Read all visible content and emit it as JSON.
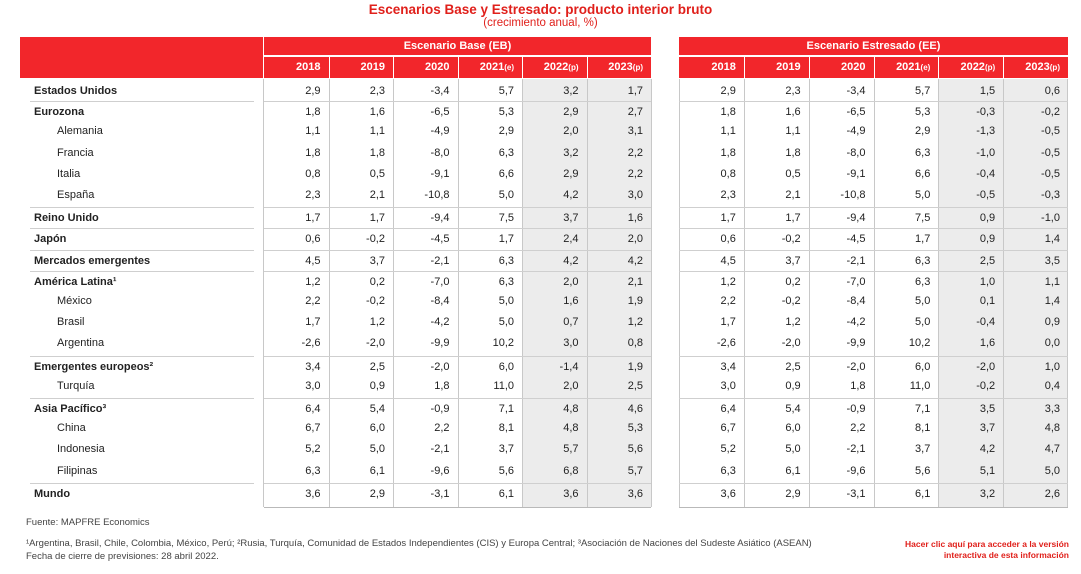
{
  "title": "Escenarios Base y Estresado: producto interior bruto",
  "subtitle": "(crecimiento anual, %)",
  "groups": {
    "base": "Escenario Base (EB)",
    "stress": "Escenario Estresado (EE)"
  },
  "years": [
    {
      "y": "2018",
      "s": ""
    },
    {
      "y": "2019",
      "s": ""
    },
    {
      "y": "2020",
      "s": ""
    },
    {
      "y": "2021",
      "s": "(e)"
    },
    {
      "y": "2022",
      "s": "(p)"
    },
    {
      "y": "2023",
      "s": "(p)"
    }
  ],
  "rows": [
    {
      "label": "Estados Unidos",
      "bold": true,
      "indent": false,
      "eb": [
        "2,9",
        "2,3",
        "-3,4",
        "5,7",
        "3,2",
        "1,7"
      ],
      "ee": [
        "2,9",
        "2,3",
        "-3,4",
        "5,7",
        "1,5",
        "0,6"
      ]
    },
    {
      "label": "Eurozona",
      "bold": true,
      "indent": false,
      "eb": [
        "1,8",
        "1,6",
        "-6,5",
        "5,3",
        "2,9",
        "2,7"
      ],
      "ee": [
        "1,8",
        "1,6",
        "-6,5",
        "5,3",
        "-0,3",
        "-0,2"
      ]
    },
    {
      "label": "Alemania",
      "bold": false,
      "indent": true,
      "eb": [
        "1,1",
        "1,1",
        "-4,9",
        "2,9",
        "2,0",
        "3,1"
      ],
      "ee": [
        "1,1",
        "1,1",
        "-4,9",
        "2,9",
        "-1,3",
        "-0,5"
      ]
    },
    {
      "label": "Francia",
      "bold": false,
      "indent": true,
      "eb": [
        "1,8",
        "1,8",
        "-8,0",
        "6,3",
        "3,2",
        "2,2"
      ],
      "ee": [
        "1,8",
        "1,8",
        "-8,0",
        "6,3",
        "-1,0",
        "-0,5"
      ]
    },
    {
      "label": "Italia",
      "bold": false,
      "indent": true,
      "eb": [
        "0,8",
        "0,5",
        "-9,1",
        "6,6",
        "2,9",
        "2,2"
      ],
      "ee": [
        "0,8",
        "0,5",
        "-9,1",
        "6,6",
        "-0,4",
        "-0,5"
      ]
    },
    {
      "label": "España",
      "bold": false,
      "indent": true,
      "eb": [
        "2,3",
        "2,1",
        "-10,8",
        "5,0",
        "4,2",
        "3,0"
      ],
      "ee": [
        "2,3",
        "2,1",
        "-10,8",
        "5,0",
        "-0,5",
        "-0,3"
      ]
    },
    {
      "label": "Reino Unido",
      "bold": true,
      "indent": false,
      "eb": [
        "1,7",
        "1,7",
        "-9,4",
        "7,5",
        "3,7",
        "1,6"
      ],
      "ee": [
        "1,7",
        "1,7",
        "-9,4",
        "7,5",
        "0,9",
        "-1,0"
      ]
    },
    {
      "label": "Japón",
      "bold": true,
      "indent": false,
      "eb": [
        "0,6",
        "-0,2",
        "-4,5",
        "1,7",
        "2,4",
        "2,0"
      ],
      "ee": [
        "0,6",
        "-0,2",
        "-4,5",
        "1,7",
        "0,9",
        "1,4"
      ]
    },
    {
      "label": "Mercados emergentes",
      "bold": true,
      "indent": false,
      "eb": [
        "4,5",
        "3,7",
        "-2,1",
        "6,3",
        "4,2",
        "4,2"
      ],
      "ee": [
        "4,5",
        "3,7",
        "-2,1",
        "6,3",
        "2,5",
        "3,5"
      ]
    },
    {
      "label": "América Latina¹",
      "bold": true,
      "indent": false,
      "eb": [
        "1,2",
        "0,2",
        "-7,0",
        "6,3",
        "2,0",
        "2,1"
      ],
      "ee": [
        "1,2",
        "0,2",
        "-7,0",
        "6,3",
        "1,0",
        "1,1"
      ]
    },
    {
      "label": "México",
      "bold": false,
      "indent": true,
      "eb": [
        "2,2",
        "-0,2",
        "-8,4",
        "5,0",
        "1,6",
        "1,9"
      ],
      "ee": [
        "2,2",
        "-0,2",
        "-8,4",
        "5,0",
        "0,1",
        "1,4"
      ]
    },
    {
      "label": "Brasil",
      "bold": false,
      "indent": true,
      "eb": [
        "1,7",
        "1,2",
        "-4,2",
        "5,0",
        "0,7",
        "1,2"
      ],
      "ee": [
        "1,7",
        "1,2",
        "-4,2",
        "5,0",
        "-0,4",
        "0,9"
      ]
    },
    {
      "label": "Argentina",
      "bold": false,
      "indent": true,
      "eb": [
        "-2,6",
        "-2,0",
        "-9,9",
        "10,2",
        "3,0",
        "0,8"
      ],
      "ee": [
        "-2,6",
        "-2,0",
        "-9,9",
        "10,2",
        "1,6",
        "0,0"
      ]
    },
    {
      "label": "Emergentes europeos²",
      "bold": true,
      "indent": false,
      "eb": [
        "3,4",
        "2,5",
        "-2,0",
        "6,0",
        "-1,4",
        "1,9"
      ],
      "ee": [
        "3,4",
        "2,5",
        "-2,0",
        "6,0",
        "-2,0",
        "1,0"
      ]
    },
    {
      "label": "Turquía",
      "bold": false,
      "indent": true,
      "eb": [
        "3,0",
        "0,9",
        "1,8",
        "11,0",
        "2,0",
        "2,5"
      ],
      "ee": [
        "3,0",
        "0,9",
        "1,8",
        "11,0",
        "-0,2",
        "0,4"
      ]
    },
    {
      "label": "Asia Pacífico³",
      "bold": true,
      "indent": false,
      "eb": [
        "6,4",
        "5,4",
        "-0,9",
        "7,1",
        "4,8",
        "4,6"
      ],
      "ee": [
        "6,4",
        "5,4",
        "-0,9",
        "7,1",
        "3,5",
        "3,3"
      ]
    },
    {
      "label": "China",
      "bold": false,
      "indent": true,
      "eb": [
        "6,7",
        "6,0",
        "2,2",
        "8,1",
        "4,8",
        "5,3"
      ],
      "ee": [
        "6,7",
        "6,0",
        "2,2",
        "8,1",
        "3,7",
        "4,8"
      ]
    },
    {
      "label": "Indonesia",
      "bold": false,
      "indent": true,
      "eb": [
        "5,2",
        "5,0",
        "-2,1",
        "3,7",
        "5,7",
        "5,6"
      ],
      "ee": [
        "5,2",
        "5,0",
        "-2,1",
        "3,7",
        "4,2",
        "4,7"
      ]
    },
    {
      "label": "Filipinas",
      "bold": false,
      "indent": true,
      "eb": [
        "6,3",
        "6,1",
        "-9,6",
        "5,6",
        "6,8",
        "5,7"
      ],
      "ee": [
        "6,3",
        "6,1",
        "-9,6",
        "5,6",
        "5,1",
        "5,0"
      ]
    },
    {
      "label": "Mundo",
      "bold": true,
      "indent": false,
      "eb": [
        "3,6",
        "2,9",
        "-3,1",
        "6,1",
        "3,6",
        "3,6"
      ],
      "ee": [
        "3,6",
        "2,9",
        "-3,1",
        "6,1",
        "3,2",
        "2,6"
      ]
    }
  ],
  "footer": {
    "source": "Fuente: MAPFRE Economics",
    "notes": "¹Argentina, Brasil, Chile, Colombia, México, Perú; ²Rusia, Turquía, Comunidad de Estados Independientes (CIS) y Europa Central; ³Asociación de Naciones del Sudeste Asiático (ASEAN)",
    "date": "Fecha de cierre de previsiones: 28 abril 2022.",
    "link_line1": "Hacer clic aquí para acceder a la versión",
    "link_line2": "interactiva de esta información"
  },
  "colors": {
    "accent": "#f2262b",
    "title": "#e0201b",
    "shade": "#ececec"
  }
}
